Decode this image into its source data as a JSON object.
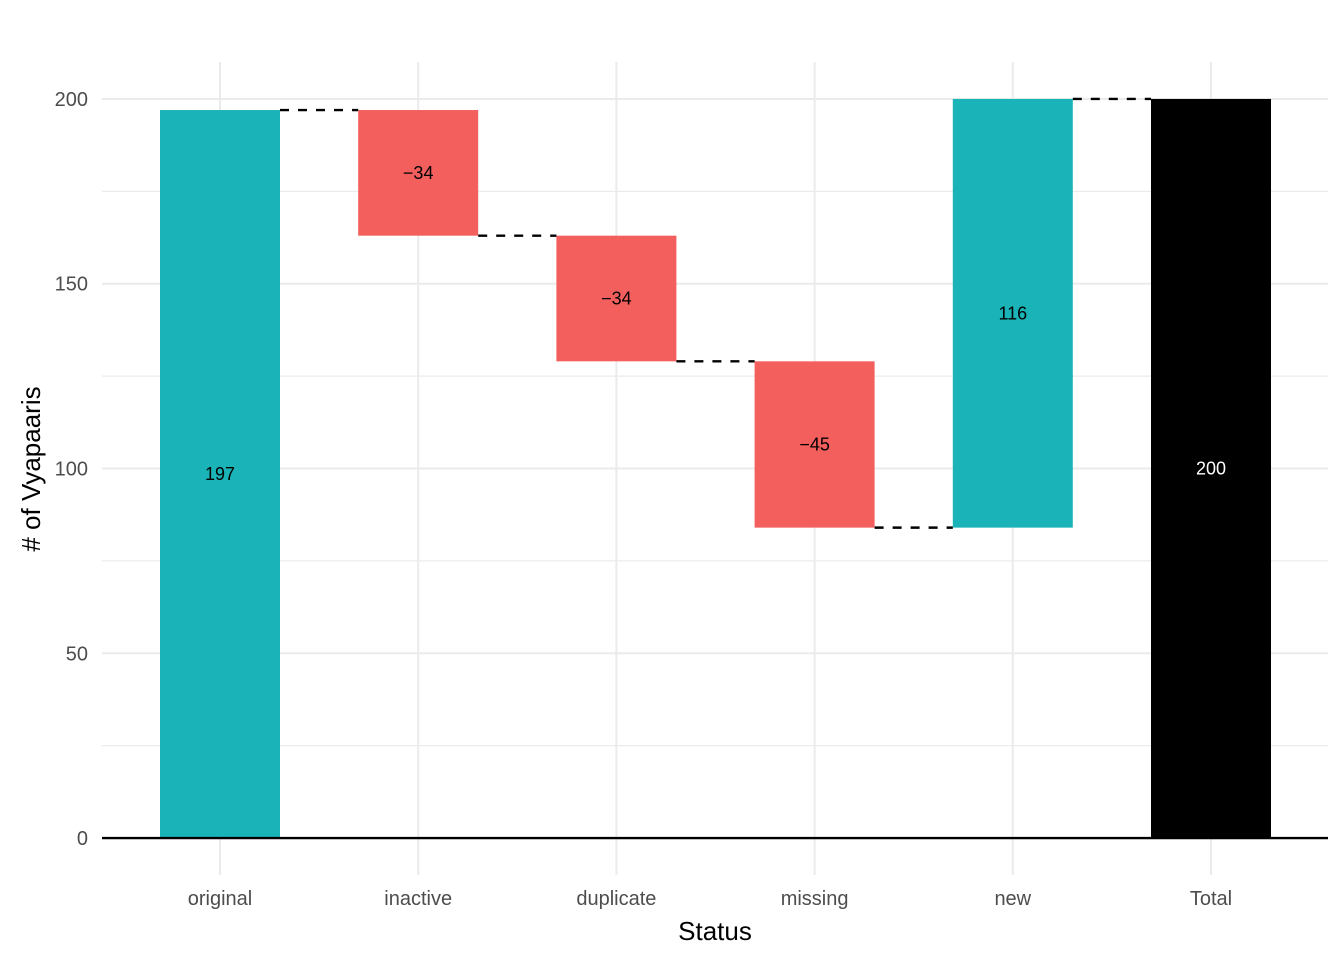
{
  "chart_data": {
    "type": "waterfall",
    "categories": [
      "original",
      "inactive",
      "duplicate",
      "missing",
      "new",
      "Total"
    ],
    "values": [
      197,
      -34,
      -34,
      -45,
      116,
      200
    ],
    "starts": [
      0,
      197,
      163,
      129,
      84,
      0
    ],
    "ends": [
      197,
      163,
      129,
      84,
      200,
      200
    ],
    "labels": [
      "197",
      "−34",
      "−34",
      "−45",
      "116",
      "200"
    ],
    "colors": [
      "#1ab4b8",
      "#f35f5c",
      "#f35f5c",
      "#f35f5c",
      "#1ab4b8",
      "#000000"
    ],
    "label_colors": [
      "#000000",
      "#000000",
      "#000000",
      "#000000",
      "#000000",
      "#ffffff"
    ],
    "xlabel": "Status",
    "ylabel": "# of Vyapaaris",
    "ylim": [
      -10,
      210
    ],
    "yticks": [
      0,
      50,
      100,
      150,
      200
    ],
    "ytick_labels": [
      "0",
      "50",
      "100",
      "150",
      "200"
    ],
    "grid": true,
    "connectors": "dashed"
  }
}
